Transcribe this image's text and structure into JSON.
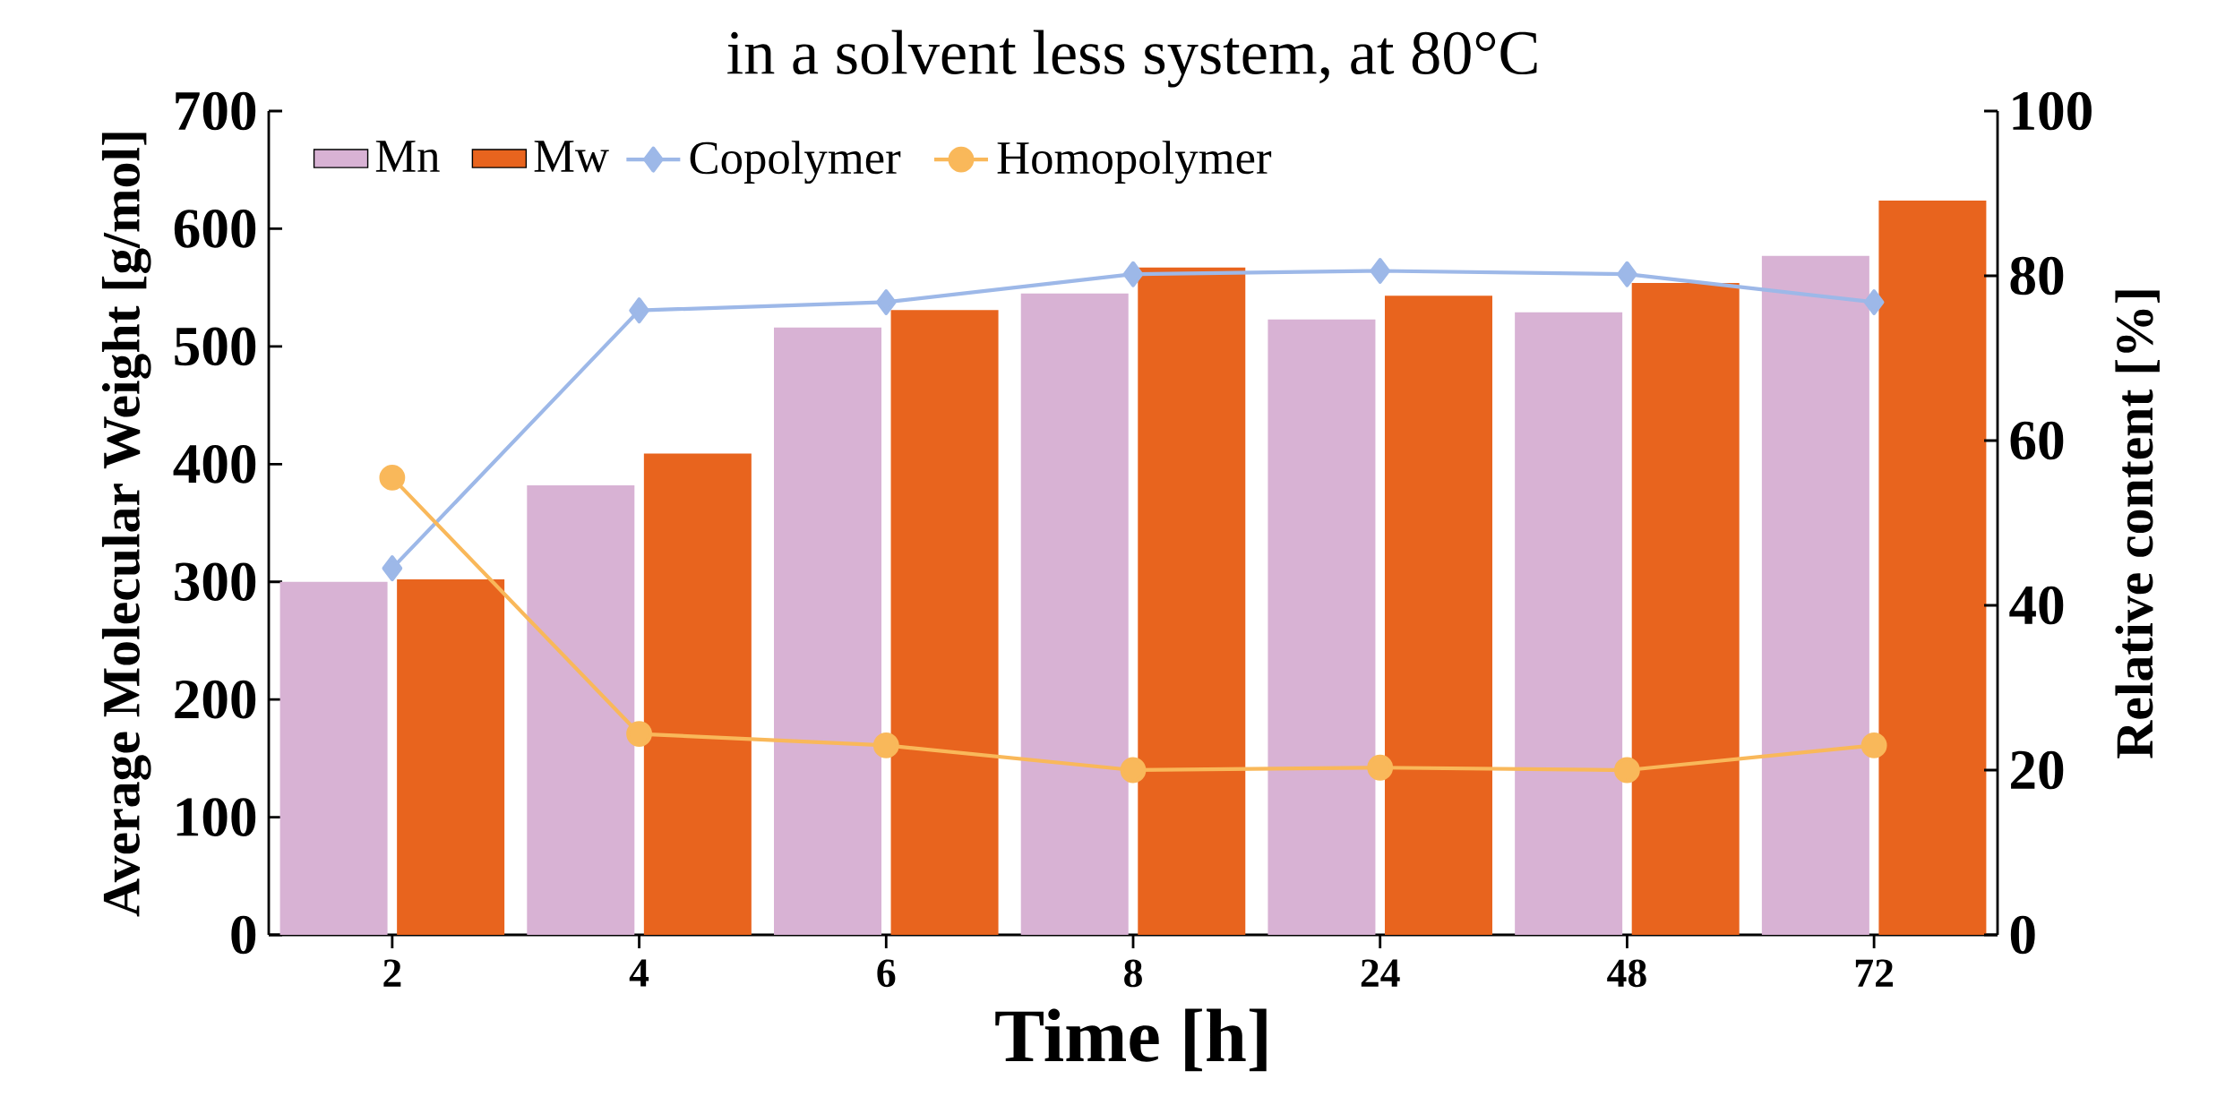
{
  "chart_data": {
    "type": "bar",
    "title": "in a solvent less system, at 80°C",
    "xlabel": "Time [h]",
    "ylabel": "Average Molecular Weight [g/mol]",
    "y2label": "Relative content [%]",
    "categories": [
      "2",
      "4",
      "6",
      "8",
      "24",
      "48",
      "72"
    ],
    "ylim": [
      0,
      700
    ],
    "yticks": [
      0,
      100,
      200,
      300,
      400,
      500,
      600,
      700
    ],
    "y2lim": [
      0,
      100
    ],
    "y2ticks": [
      0,
      20,
      40,
      60,
      80,
      100
    ],
    "legend": "top left",
    "series": [
      {
        "name": "Mn",
        "color": "#d8b2d4",
        "values": [
          300,
          382,
          516,
          545,
          523,
          529,
          577
        ]
      },
      {
        "name": "Mw",
        "color": "#e8641e",
        "values": [
          302,
          409,
          531,
          567,
          543,
          554,
          624
        ]
      },
      {
        "name": "Copolymer",
        "type": "line",
        "axis": "y2",
        "marker": "diamond",
        "color": "#9db8e8",
        "values": [
          44.5,
          75.8,
          76.8,
          80.2,
          80.6,
          80.2,
          76.8
        ]
      },
      {
        "name": "Homopolymer",
        "type": "line",
        "axis": "y2",
        "marker": "circle",
        "color": "#f9b85a",
        "values": [
          55.5,
          24.4,
          23.0,
          20.0,
          20.3,
          20.0,
          23.0
        ]
      }
    ]
  }
}
